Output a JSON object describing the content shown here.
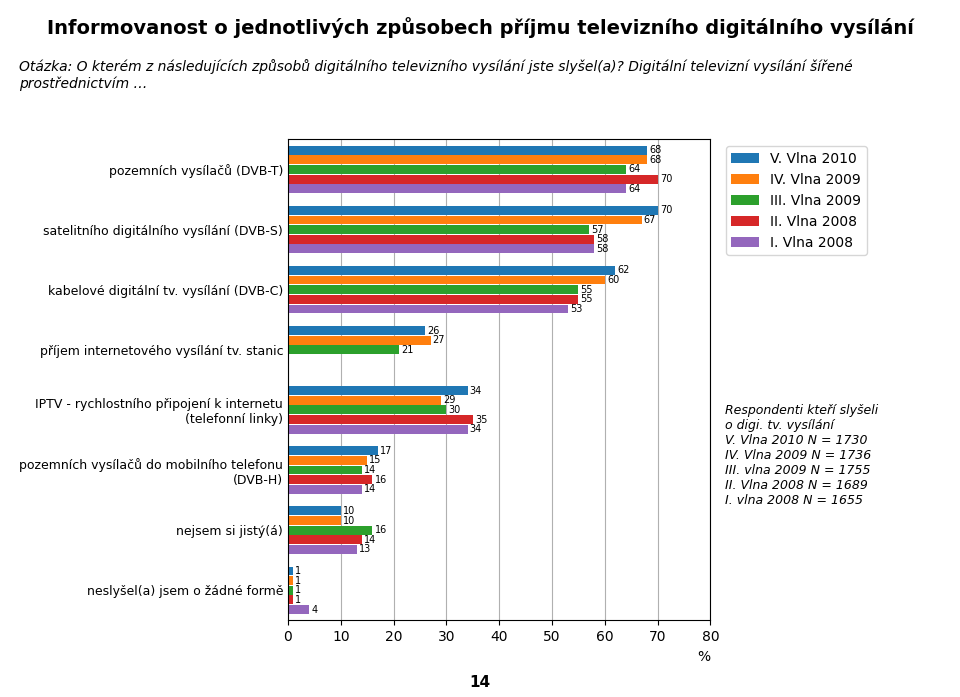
{
  "chart_data": {
    "type": "bar",
    "orientation": "horizontal",
    "title": "Informovanost o jednotlivých způsobech příjmu televizního digitálního vysílání",
    "subtitle": "Otázka: O kterém z následujících způsobů digitálního televizního vysílání jste slyšel(a)? Digitální televizní vysílání šířené prostřednictvím …",
    "xlabel": "%",
    "categories": [
      "pozemních vysílačů (DVB-T)",
      "satelitního digitálního vysílání (DVB-S)",
      "kabelové digitální tv. vysílání (DVB-C)",
      "příjem internetového vysílání tv. stanic",
      "IPTV - rychlostního připojení k internetu\n(telefonní linky)",
      "pozemních vysílačů do mobilního telefonu\n(DVB-H)",
      "nejsem si jistý(á)",
      "neslyšel(a) jsem o žádné formě"
    ],
    "series": [
      {
        "name": "V. Vlna 2010",
        "values": [
          68,
          70,
          62,
          26,
          34,
          17,
          10,
          1
        ]
      },
      {
        "name": "IV. Vlna 2009",
        "values": [
          68,
          67,
          60,
          27,
          29,
          15,
          10,
          1
        ]
      },
      {
        "name": "III. Vlna 2009",
        "values": [
          64,
          57,
          55,
          21,
          30,
          14,
          16,
          1
        ]
      },
      {
        "name": "II. Vlna 2008",
        "values": [
          70,
          58,
          55,
          null,
          35,
          16,
          14,
          1
        ]
      },
      {
        "name": "I. Vlna 2008",
        "values": [
          64,
          58,
          53,
          null,
          34,
          14,
          13,
          4
        ]
      }
    ],
    "xlim": [
      0,
      80
    ],
    "xticks": [
      0,
      10,
      20,
      30,
      40,
      50,
      60,
      70,
      80
    ],
    "grid": true,
    "legend": "upper left",
    "data_labels": true,
    "annotations": [
      "Respondenti kteří slyšeli\no digi. tv. vysílání\nV. Vlna 2010 N = 1730\nIV. Vlna 2009 N = 1736\nIII. vlna 2009 N = 1755\nII. Vlna 2008 N = 1689\nI. vlna 2008 N = 1655",
      "14"
    ]
  }
}
